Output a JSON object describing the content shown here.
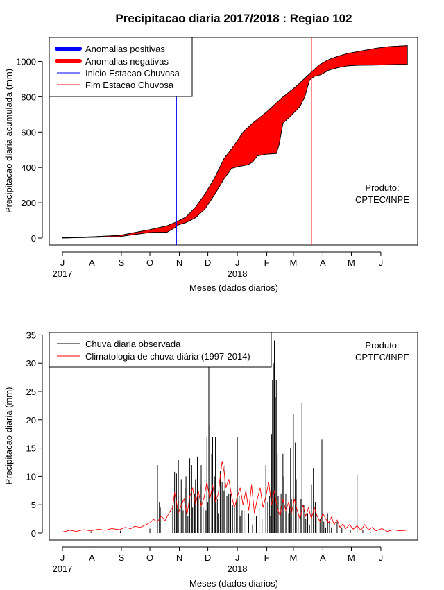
{
  "title": "Precipitacao diaria 2017/2018 : Regiao 102",
  "months": [
    "J",
    "A",
    "S",
    "O",
    "N",
    "D",
    "J",
    "F",
    "M",
    "A",
    "M",
    "J"
  ],
  "year_labels": [
    "2017",
    "2018"
  ],
  "colors": {
    "positive": "#0000ff",
    "negative": "#ff0000",
    "start": "#0000ff",
    "end": "#ff0000",
    "bars": "#000000",
    "clim": "#ff0000"
  },
  "chart_data": [
    {
      "type": "area",
      "xlabel": "Meses (dados diarios)",
      "ylabel": "Precipitacao diaria acumulada (mm)",
      "ylim": [
        0,
        1100
      ],
      "yticks": [
        0,
        200,
        400,
        600,
        800,
        1000
      ],
      "x_unit": "days since 2017-07-01",
      "legend": [
        "Anomalias positivas",
        "Anomalias negativas",
        "Inicio Estacao Chuvosa",
        "Fim Estacao Chuvosa"
      ],
      "note": [
        "Produto:",
        "CPTEC/INPE"
      ],
      "start_day": 120,
      "end_day": 262,
      "observed": [
        [
          0,
          0
        ],
        [
          30,
          4
        ],
        [
          60,
          8
        ],
        [
          92,
          32
        ],
        [
          100,
          33
        ],
        [
          110,
          33
        ],
        [
          118,
          58
        ],
        [
          122,
          75
        ],
        [
          130,
          88
        ],
        [
          140,
          115
        ],
        [
          150,
          165
        ],
        [
          160,
          245
        ],
        [
          170,
          335
        ],
        [
          178,
          395
        ],
        [
          185,
          405
        ],
        [
          195,
          415
        ],
        [
          200,
          430
        ],
        [
          205,
          465
        ],
        [
          215,
          475
        ],
        [
          225,
          478
        ],
        [
          228,
          530
        ],
        [
          232,
          650
        ],
        [
          240,
          690
        ],
        [
          250,
          745
        ],
        [
          255,
          800
        ],
        [
          260,
          895
        ],
        [
          265,
          915
        ],
        [
          272,
          925
        ],
        [
          280,
          950
        ],
        [
          290,
          965
        ],
        [
          300,
          975
        ],
        [
          310,
          978
        ],
        [
          335,
          980
        ],
        [
          350,
          983
        ],
        [
          363,
          983
        ]
      ],
      "climatology": [
        [
          0,
          2
        ],
        [
          30,
          7
        ],
        [
          60,
          15
        ],
        [
          92,
          48
        ],
        [
          110,
          70
        ],
        [
          120,
          92
        ],
        [
          130,
          120
        ],
        [
          140,
          175
        ],
        [
          150,
          250
        ],
        [
          160,
          340
        ],
        [
          170,
          450
        ],
        [
          180,
          520
        ],
        [
          190,
          600
        ],
        [
          200,
          650
        ],
        [
          215,
          715
        ],
        [
          230,
          790
        ],
        [
          245,
          855
        ],
        [
          260,
          930
        ],
        [
          270,
          980
        ],
        [
          280,
          1010
        ],
        [
          290,
          1030
        ],
        [
          300,
          1045
        ],
        [
          315,
          1060
        ],
        [
          330,
          1075
        ],
        [
          345,
          1085
        ],
        [
          363,
          1090
        ]
      ]
    },
    {
      "type": "bar",
      "xlabel": "Meses (dados diarios)",
      "ylabel": "Precipitacao diaria (mm)",
      "ylim": [
        0,
        35
      ],
      "yticks": [
        0,
        5,
        10,
        15,
        20,
        25,
        30,
        35
      ],
      "legend": [
        "Chuva diaria observada",
        "Climatologia de chuva diária (1997-2014)"
      ],
      "note": [
        "Produto:",
        "CPTEC/INPE"
      ],
      "daily_observed": [
        [
          30,
          0.3
        ],
        [
          61,
          0.4
        ],
        [
          92,
          0.8
        ],
        [
          100,
          12.0
        ],
        [
          102,
          5.5
        ],
        [
          103,
          4.5
        ],
        [
          112,
          0.8
        ],
        [
          116,
          5.0
        ],
        [
          118,
          10.8
        ],
        [
          120,
          10.5
        ],
        [
          121,
          4.5
        ],
        [
          122,
          13.0
        ],
        [
          125,
          9.5
        ],
        [
          126,
          6.0
        ],
        [
          127,
          4.0
        ],
        [
          129,
          8.0
        ],
        [
          130,
          10.0
        ],
        [
          132,
          3.0
        ],
        [
          134,
          13.2
        ],
        [
          136,
          12.0
        ],
        [
          137,
          4.5
        ],
        [
          139,
          7.0
        ],
        [
          140,
          9.5
        ],
        [
          142,
          13.5
        ],
        [
          143,
          6.5
        ],
        [
          145,
          8.5
        ],
        [
          146,
          12.0
        ],
        [
          148,
          4.5
        ],
        [
          150,
          7.0
        ],
        [
          151,
          4.0
        ],
        [
          152,
          17.0
        ],
        [
          153,
          5.5
        ],
        [
          154,
          31.0
        ],
        [
          155,
          19.0
        ],
        [
          157,
          14.0
        ],
        [
          158,
          17.0
        ],
        [
          160,
          10.0
        ],
        [
          161,
          17.0
        ],
        [
          163,
          6.0
        ],
        [
          164,
          3.5
        ],
        [
          166,
          11.0
        ],
        [
          168,
          9.0
        ],
        [
          170,
          7.5
        ],
        [
          171,
          12.0
        ],
        [
          173,
          6.5
        ],
        [
          175,
          7.0
        ],
        [
          177,
          7.0
        ],
        [
          179,
          5.0
        ],
        [
          181,
          4.5
        ],
        [
          183,
          5.5
        ],
        [
          184,
          17.0
        ],
        [
          186,
          6.5
        ],
        [
          187,
          3.0
        ],
        [
          189,
          4.0
        ],
        [
          191,
          4.0
        ],
        [
          193,
          2.5
        ],
        [
          196,
          3.5
        ],
        [
          200,
          1.5
        ],
        [
          204,
          3.0
        ],
        [
          207,
          4.5
        ],
        [
          210,
          2.5
        ],
        [
          214,
          12.0
        ],
        [
          216,
          5.5
        ],
        [
          218,
          6.5
        ],
        [
          219,
          3.0
        ],
        [
          220,
          17.5
        ],
        [
          221,
          27.0
        ],
        [
          222,
          30.0
        ],
        [
          223,
          34.0
        ],
        [
          224,
          24.0
        ],
        [
          225,
          27.0
        ],
        [
          226,
          14.0
        ],
        [
          227,
          6.5
        ],
        [
          229,
          4.5
        ],
        [
          230,
          7.0
        ],
        [
          232,
          14.0
        ],
        [
          233,
          10.0
        ],
        [
          235,
          7.0
        ],
        [
          236,
          4.0
        ],
        [
          238,
          3.5
        ],
        [
          239,
          4.5
        ],
        [
          240,
          15.0
        ],
        [
          241,
          6.0
        ],
        [
          243,
          21.0
        ],
        [
          245,
          16.0
        ],
        [
          246,
          9.5
        ],
        [
          248,
          3.5
        ],
        [
          250,
          11.0
        ],
        [
          251,
          6.0
        ],
        [
          252,
          23.0
        ],
        [
          254,
          5.0
        ],
        [
          256,
          2.5
        ],
        [
          258,
          3.5
        ],
        [
          260,
          1.5
        ],
        [
          262,
          8.5
        ],
        [
          264,
          11.5
        ],
        [
          266,
          5.5
        ],
        [
          267,
          3.5
        ],
        [
          269,
          11.0
        ],
        [
          271,
          2.5
        ],
        [
          273,
          16.5
        ],
        [
          275,
          2.0
        ],
        [
          277,
          1.0
        ],
        [
          279,
          3.5
        ],
        [
          281,
          2.0
        ],
        [
          283,
          1.0
        ],
        [
          289,
          2.0
        ],
        [
          294,
          1.0
        ],
        [
          303,
          0.5
        ],
        [
          310,
          10.3
        ],
        [
          316,
          0.5
        ],
        [
          324,
          0.3
        ]
      ],
      "climatology_daily": [
        [
          0,
          0.2
        ],
        [
          8,
          0.5
        ],
        [
          15,
          0.3
        ],
        [
          22,
          0.6
        ],
        [
          30,
          0.4
        ],
        [
          38,
          0.7
        ],
        [
          45,
          0.5
        ],
        [
          52,
          0.8
        ],
        [
          60,
          0.6
        ],
        [
          66,
          1.0
        ],
        [
          72,
          0.8
        ],
        [
          76,
          1.2
        ],
        [
          82,
          1.0
        ],
        [
          88,
          1.5
        ],
        [
          92,
          1.8
        ],
        [
          96,
          2.4
        ],
        [
          100,
          2.0
        ],
        [
          104,
          3.0
        ],
        [
          108,
          2.2
        ],
        [
          112,
          3.5
        ],
        [
          116,
          4.5
        ],
        [
          118,
          7.2
        ],
        [
          120,
          5.5
        ],
        [
          122,
          3.5
        ],
        [
          125,
          5.0
        ],
        [
          128,
          6.0
        ],
        [
          131,
          3.2
        ],
        [
          134,
          6.5
        ],
        [
          137,
          8.0
        ],
        [
          140,
          5.0
        ],
        [
          143,
          7.5
        ],
        [
          146,
          4.8
        ],
        [
          149,
          6.2
        ],
        [
          152,
          9.0
        ],
        [
          155,
          6.0
        ],
        [
          158,
          8.5
        ],
        [
          161,
          5.5
        ],
        [
          164,
          7.0
        ],
        [
          166,
          10.0
        ],
        [
          168,
          12.7
        ],
        [
          170,
          11.0
        ],
        [
          172,
          8.0
        ],
        [
          175,
          9.5
        ],
        [
          178,
          6.5
        ],
        [
          181,
          4.5
        ],
        [
          184,
          6.5
        ],
        [
          187,
          8.0
        ],
        [
          190,
          5.0
        ],
        [
          193,
          7.5
        ],
        [
          196,
          4.0
        ],
        [
          199,
          8.5
        ],
        [
          202,
          3.5
        ],
        [
          205,
          6.0
        ],
        [
          208,
          8.0
        ],
        [
          211,
          4.5
        ],
        [
          214,
          6.5
        ],
        [
          217,
          9.0
        ],
        [
          220,
          5.0
        ],
        [
          223,
          7.5
        ],
        [
          226,
          4.5
        ],
        [
          229,
          3.0
        ],
        [
          232,
          6.0
        ],
        [
          235,
          4.0
        ],
        [
          238,
          5.5
        ],
        [
          241,
          3.5
        ],
        [
          244,
          6.0
        ],
        [
          247,
          4.0
        ],
        [
          250,
          2.5
        ],
        [
          253,
          5.0
        ],
        [
          256,
          3.0
        ],
        [
          259,
          4.5
        ],
        [
          262,
          2.5
        ],
        [
          265,
          4.5
        ],
        [
          268,
          3.0
        ],
        [
          271,
          2.0
        ],
        [
          274,
          3.5
        ],
        [
          277,
          2.5
        ],
        [
          280,
          1.8
        ],
        [
          283,
          2.8
        ],
        [
          286,
          1.5
        ],
        [
          289,
          2.3
        ],
        [
          292,
          1.0
        ],
        [
          295,
          1.6
        ],
        [
          298,
          0.8
        ],
        [
          302,
          1.5
        ],
        [
          306,
          0.7
        ],
        [
          310,
          1.3
        ],
        [
          314,
          0.5
        ],
        [
          318,
          1.5
        ],
        [
          322,
          0.6
        ],
        [
          326,
          1.0
        ],
        [
          330,
          0.4
        ],
        [
          336,
          0.8
        ],
        [
          342,
          0.3
        ],
        [
          348,
          0.6
        ],
        [
          355,
          0.4
        ],
        [
          362,
          0.5
        ]
      ]
    }
  ]
}
